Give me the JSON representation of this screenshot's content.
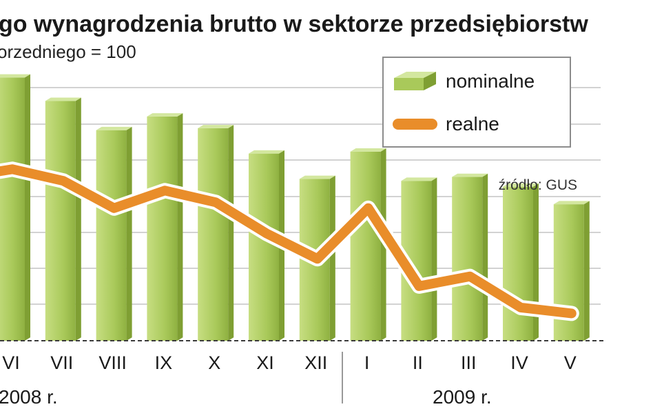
{
  "chart_data": {
    "type": "bar",
    "title": "go wynagrodzenia brutto w sektorze przedsiębiorstw",
    "subtitle": "orzedniego = 100",
    "source": "źródło: GUS",
    "categories": [
      "VI",
      "VII",
      "VIII",
      "IX",
      "X",
      "XI",
      "XII",
      "I",
      "II",
      "III",
      "IV",
      "V"
    ],
    "year_labels": [
      {
        "label": "2008 r.",
        "span": [
          0,
          6
        ]
      },
      {
        "label": "2009 r.",
        "span": [
          7,
          11
        ]
      }
    ],
    "series": [
      {
        "name": "nominalne",
        "type": "bar",
        "color": "#a9c95a",
        "values": [
          109.5,
          108.3,
          106.8,
          107.5,
          106.9,
          105.6,
          104.3,
          105.7,
          104.2,
          104.4,
          103.9,
          103.0
        ]
      },
      {
        "name": "realne",
        "type": "line",
        "color": "#e98d2a",
        "values": [
          104.8,
          104.2,
          102.8,
          103.7,
          103.1,
          101.5,
          100.2,
          102.8,
          98.8,
          99.3,
          97.7,
          97.4
        ]
      }
    ],
    "y_range": [
      96,
      111
    ],
    "grid": true,
    "legend_position": "top-right"
  },
  "colors": {
    "bar_face": "#a9c95a",
    "bar_top": "#d3e79f",
    "bar_side": "#7f9f33",
    "line": "#e98d2a",
    "grid": "#b8b8b8"
  }
}
